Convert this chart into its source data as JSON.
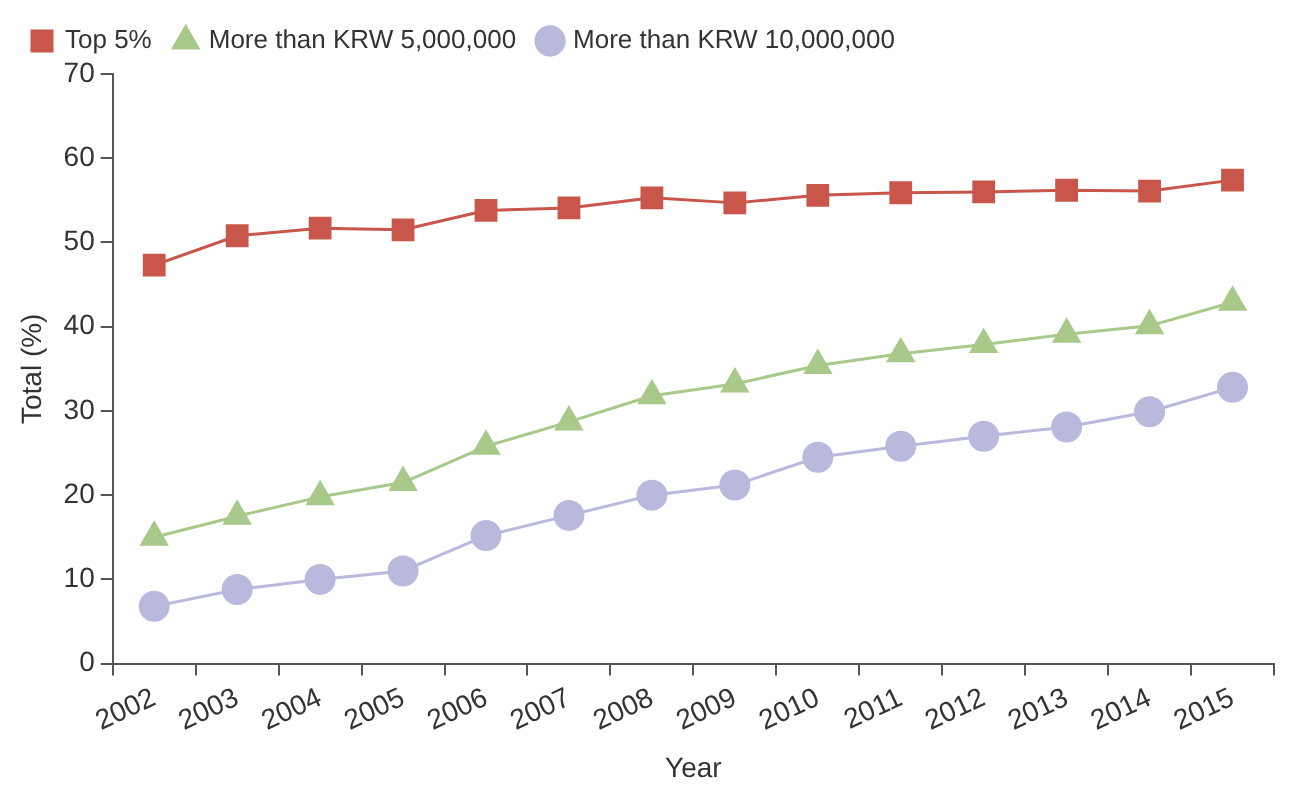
{
  "chart_data": {
    "type": "line",
    "xlabel": "Year",
    "ylabel": "Total (%)",
    "categories": [
      "2002",
      "2003",
      "2004",
      "2005",
      "2006",
      "2007",
      "2008",
      "2009",
      "2010",
      "2011",
      "2012",
      "2013",
      "2014",
      "2015"
    ],
    "series": [
      {
        "name": "Top 5%",
        "color": "#c9564b",
        "marker": "square",
        "values": [
          47.3,
          50.8,
          51.7,
          51.5,
          53.8,
          54.1,
          55.3,
          54.7,
          55.6,
          55.9,
          56.0,
          56.2,
          56.1,
          57.4
        ]
      },
      {
        "name": "More than KRW 5,000,000",
        "color": "#a8c98a",
        "marker": "triangle",
        "values": [
          15.0,
          17.5,
          19.8,
          21.5,
          25.8,
          28.7,
          31.8,
          33.2,
          35.4,
          36.8,
          37.9,
          39.1,
          40.1,
          42.9
        ]
      },
      {
        "name": "More than KRW 10,000,000",
        "color": "#b9b9dd",
        "marker": "circle",
        "values": [
          6.8,
          8.8,
          10.0,
          11.0,
          15.2,
          17.6,
          20.0,
          21.2,
          24.5,
          25.8,
          27.0,
          28.1,
          29.9,
          32.8
        ]
      }
    ],
    "ylim": [
      0,
      70
    ],
    "yticks": [
      0,
      10,
      20,
      30,
      40,
      50,
      60,
      70
    ],
    "grid": false,
    "legend": "top",
    "line_style": "solid"
  }
}
